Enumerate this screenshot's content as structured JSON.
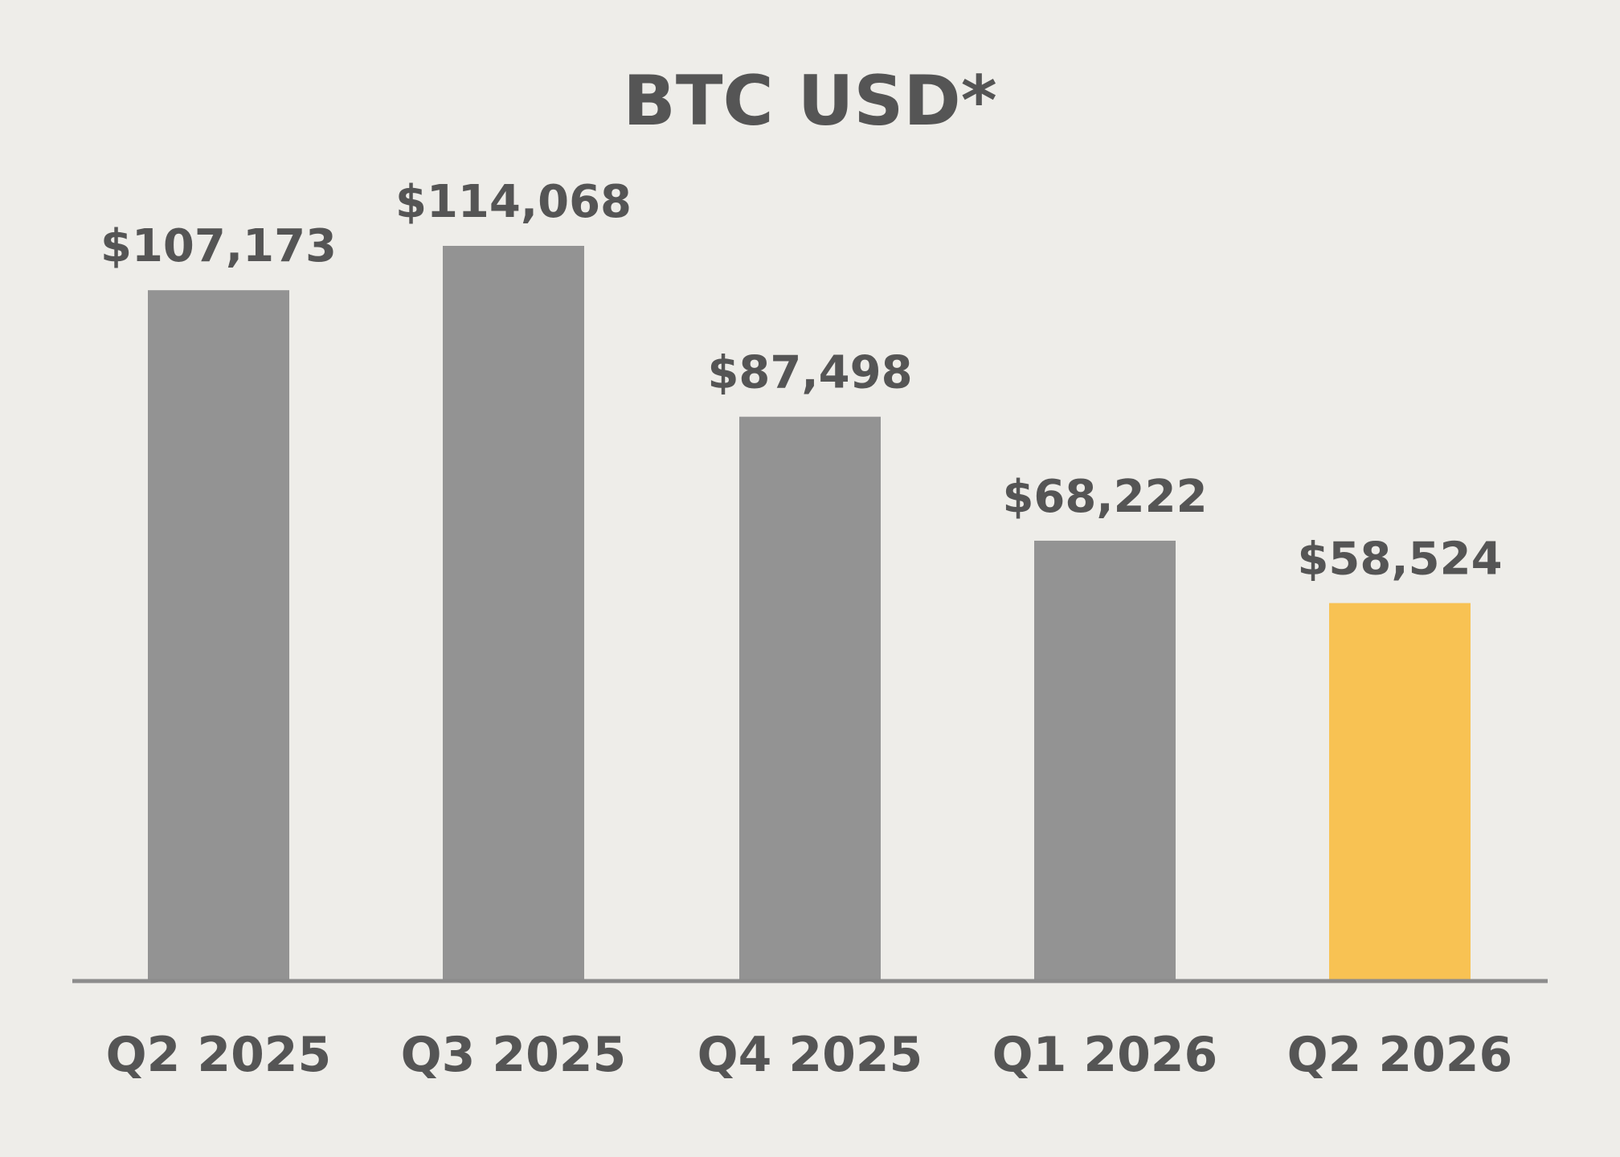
{
  "colors": {
    "background": "#EEEDE9",
    "bar": "#939393",
    "highlight_bar": "#F8C253",
    "axis": "#8C8C8C",
    "text": "#555555"
  },
  "chart_data": {
    "type": "bar",
    "title": "BTC USD*",
    "xlabel": "",
    "ylabel": "",
    "categories": [
      "Q2 2025",
      "Q3 2025",
      "Q4 2025",
      "Q1 2026",
      "Q2 2026"
    ],
    "values": [
      107173,
      114068,
      87498,
      68222,
      58524
    ],
    "value_labels": [
      "$107,173",
      "$114,068",
      "$87,498",
      "$68,222",
      "$58,524"
    ],
    "highlight_index": 4,
    "ylim": [
      0,
      120000
    ],
    "grid": false,
    "legend": "none"
  }
}
